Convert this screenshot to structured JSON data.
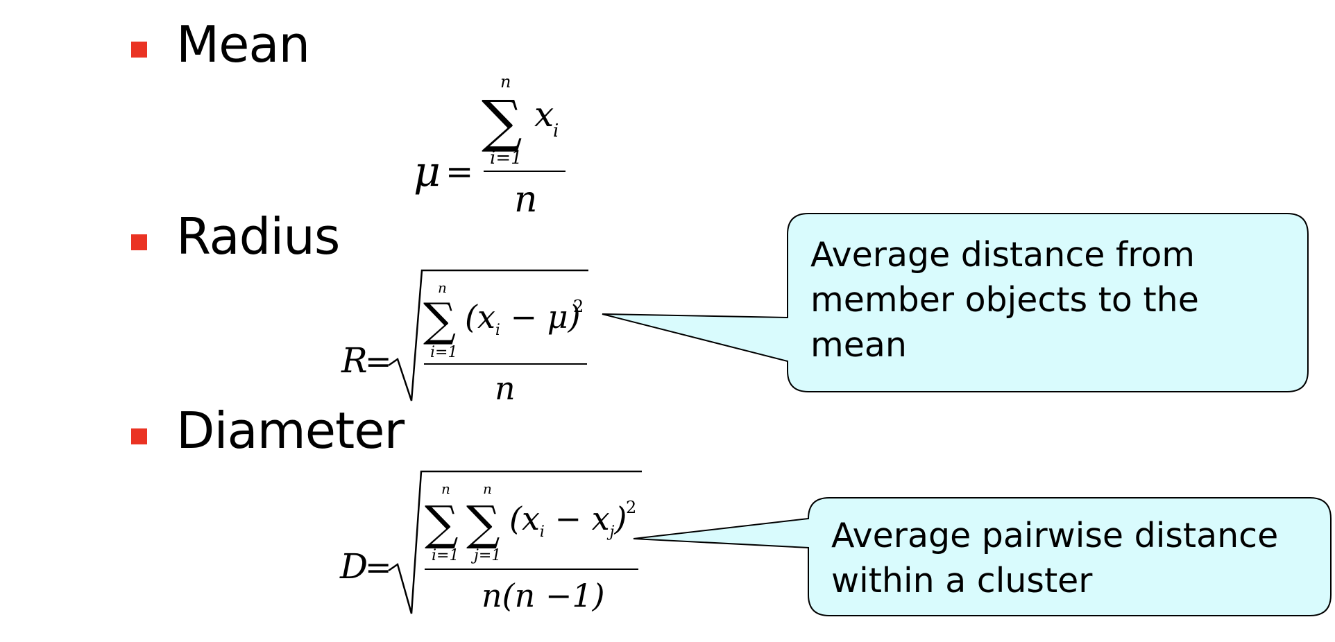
{
  "colors": {
    "bullet": "#ea3323",
    "callout_fill": "#d9fbfd",
    "callout_stroke": "#000000"
  },
  "headings": {
    "mean": "Mean",
    "radius": "Radius",
    "diameter": "Diameter"
  },
  "formulas": {
    "mean": {
      "lhs": "μ",
      "eq": "=",
      "sum_upper": "n",
      "sum_lower": "i=1",
      "term": "x",
      "term_sub": "i",
      "denominator": "n"
    },
    "radius": {
      "lhs": "R",
      "eq": "=",
      "sum_upper": "n",
      "sum_lower": "i=1",
      "term": "(x",
      "term_sub": "i",
      "term_rest": " − μ)",
      "exponent": "2",
      "denominator": "n"
    },
    "diameter": {
      "lhs": "D",
      "eq": "=",
      "sum1_upper": "n",
      "sum1_lower": "i=1",
      "sum2_upper": "n",
      "sum2_lower": "j=1",
      "term": "(x",
      "term_sub_1": "i",
      "term_mid": " − x",
      "term_sub_2": "j",
      "term_close": ")",
      "exponent": "2",
      "denominator": "n(n −1)"
    }
  },
  "callouts": {
    "radius": {
      "lines": [
        "Average distance from",
        "member objects to the",
        "mean"
      ]
    },
    "diameter": {
      "lines": [
        "Average pairwise distance",
        "within a cluster"
      ]
    }
  }
}
